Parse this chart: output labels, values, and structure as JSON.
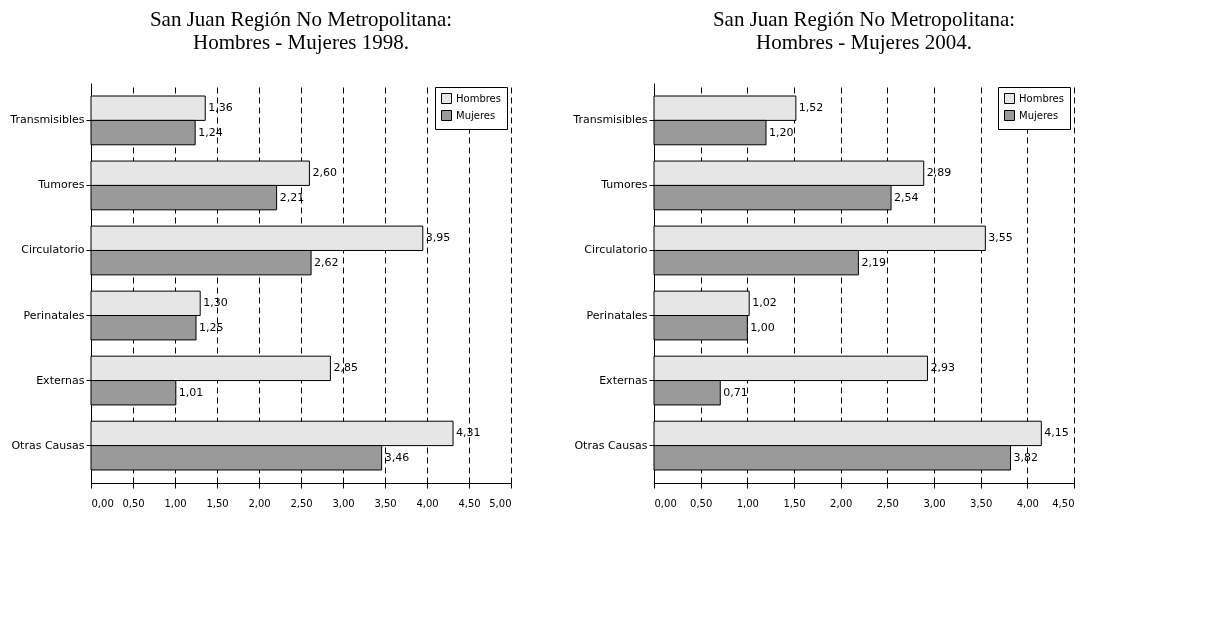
{
  "chart_data": [
    {
      "type": "bar",
      "orientation": "horizontal",
      "title": [
        "San Juan Región No Metropolitana:",
        "Hombres - Mujeres  1998."
      ],
      "categories": [
        "Transmisibles",
        "Tumores",
        "Circulatorio",
        "Perinatales",
        "Externas",
        "Otras Causas"
      ],
      "series": [
        {
          "name": "Hombres",
          "color": "#e6e6e6",
          "values": [
            1.36,
            2.6,
            3.95,
            1.3,
            2.85,
            4.31
          ],
          "value_labels": [
            "1,36",
            "2,60",
            "3,95",
            "1,30",
            "2,85",
            "4,31"
          ]
        },
        {
          "name": "Mujeres",
          "color": "#9a9a9a",
          "values": [
            1.24,
            2.21,
            2.62,
            1.25,
            1.01,
            3.46
          ],
          "value_labels": [
            "1,24",
            "2,21",
            "2,62",
            "1,25",
            "1,01",
            "3,46"
          ]
        }
      ],
      "xlim": [
        0,
        5
      ],
      "xticks": [
        {
          "value": 0,
          "label": "0,00"
        },
        {
          "value": 0.5,
          "label": "0,50"
        },
        {
          "value": 1,
          "label": "1,00"
        },
        {
          "value": 1.5,
          "label": "1,50"
        },
        {
          "value": 2,
          "label": "2,00"
        },
        {
          "value": 2.5,
          "label": "2,50"
        },
        {
          "value": 3,
          "label": "3,00"
        },
        {
          "value": 3.5,
          "label": "3,50"
        },
        {
          "value": 4,
          "label": "4,00"
        },
        {
          "value": 4.5,
          "label": "4,50"
        },
        {
          "value": 5,
          "label": "5,00"
        }
      ],
      "grid": "x",
      "legend": "top right"
    },
    {
      "type": "bar",
      "orientation": "horizontal",
      "title": [
        "San Juan Región No Metropolitana:",
        "Hombres - Mujeres  2004."
      ],
      "categories": [
        "Transmisibles",
        "Tumores",
        "Circulatorio",
        "Perinatales",
        "Externas",
        "Otras Causas"
      ],
      "series": [
        {
          "name": "Hombres",
          "color": "#e6e6e6",
          "values": [
            1.52,
            2.89,
            3.55,
            1.02,
            2.93,
            4.15
          ],
          "value_labels": [
            "1,52",
            "2,89",
            "3,55",
            "1,02",
            "2,93",
            "4,15"
          ]
        },
        {
          "name": "Mujeres",
          "color": "#9a9a9a",
          "values": [
            1.2,
            2.54,
            2.19,
            1.0,
            0.71,
            3.82
          ],
          "value_labels": [
            "1,20",
            "2,54",
            "2,19",
            "1,00",
            "0,71",
            "3,82"
          ]
        }
      ],
      "xlim": [
        0,
        4.5
      ],
      "xticks": [
        {
          "value": 0,
          "label": "0,00"
        },
        {
          "value": 0.5,
          "label": "0,50"
        },
        {
          "value": 1,
          "label": "1,00"
        },
        {
          "value": 1.5,
          "label": "1,50"
        },
        {
          "value": 2,
          "label": "2,00"
        },
        {
          "value": 2.5,
          "label": "2,50"
        },
        {
          "value": 3,
          "label": "3,00"
        },
        {
          "value": 3.5,
          "label": "3,50"
        },
        {
          "value": 4,
          "label": "4,00"
        },
        {
          "value": 4.5,
          "label": "4,50"
        }
      ],
      "grid": "x",
      "legend": "top right"
    }
  ]
}
